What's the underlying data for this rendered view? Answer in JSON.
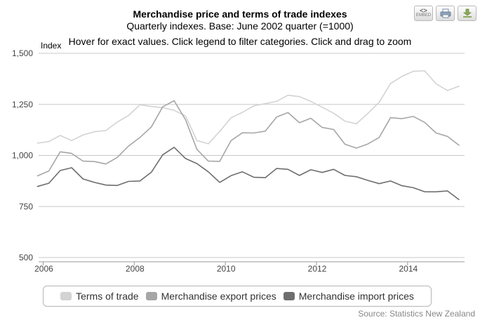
{
  "header": {
    "title": "Merchandise price and terms of trade indexes",
    "subtitle": "Quarterly indexes. Base: June 2002 quarter (=1000)",
    "hint": "Hover for exact values. Click legend to filter categories. Click and drag to zoom"
  },
  "toolbar": {
    "embed_top": "<>",
    "embed_bottom": "EMBED"
  },
  "source": "Source: Statistics New Zealand",
  "chart_data": {
    "type": "line",
    "ylabel": "Index",
    "ylim": [
      500,
      1500
    ],
    "yticks": [
      500,
      750,
      1000,
      1250,
      1500
    ],
    "ytick_labels": [
      "500",
      "750",
      "1,000",
      "1,250",
      "1,500"
    ],
    "xlim": [
      2005.9,
      2015.25
    ],
    "xticks": [
      2006,
      2008,
      2010,
      2012,
      2014
    ],
    "xtick_labels": [
      "2006",
      "2008",
      "2010",
      "2012",
      "2014"
    ],
    "x": [
      2005.875,
      2006.125,
      2006.375,
      2006.625,
      2006.875,
      2007.125,
      2007.375,
      2007.625,
      2007.875,
      2008.125,
      2008.375,
      2008.625,
      2008.875,
      2009.125,
      2009.375,
      2009.625,
      2009.875,
      2010.125,
      2010.375,
      2010.625,
      2010.875,
      2011.125,
      2011.375,
      2011.625,
      2011.875,
      2012.125,
      2012.375,
      2012.625,
      2012.875,
      2013.125,
      2013.375,
      2013.625,
      2013.875,
      2014.125,
      2014.375,
      2014.625,
      2014.875,
      2015.125
    ],
    "series": [
      {
        "name": "Terms of trade",
        "color": "#d3d3d3",
        "values": [
          1060,
          1068,
          1098,
          1073,
          1100,
          1116,
          1122,
          1163,
          1196,
          1248,
          1240,
          1234,
          1221,
          1193,
          1073,
          1057,
          1118,
          1185,
          1211,
          1243,
          1254,
          1265,
          1295,
          1288,
          1265,
          1236,
          1207,
          1168,
          1155,
          1205,
          1260,
          1352,
          1387,
          1412,
          1414,
          1351,
          1318,
          1339
        ]
      },
      {
        "name": "Merchandise export prices",
        "color": "#a6a6a6",
        "values": [
          900,
          924,
          1018,
          1010,
          972,
          970,
          958,
          990,
          1046,
          1088,
          1140,
          1238,
          1268,
          1175,
          1030,
          972,
          971,
          1073,
          1111,
          1110,
          1119,
          1188,
          1210,
          1160,
          1182,
          1137,
          1127,
          1055,
          1036,
          1056,
          1088,
          1185,
          1180,
          1191,
          1162,
          1110,
          1093,
          1050
        ]
      },
      {
        "name": "Merchandise import prices",
        "color": "#6e6e6e",
        "values": [
          848,
          864,
          926,
          940,
          885,
          868,
          855,
          853,
          873,
          875,
          918,
          1003,
          1040,
          985,
          960,
          920,
          868,
          901,
          920,
          893,
          891,
          936,
          932,
          902,
          930,
          917,
          932,
          902,
          896,
          878,
          862,
          875,
          852,
          842,
          822,
          822,
          826,
          784
        ]
      }
    ]
  }
}
